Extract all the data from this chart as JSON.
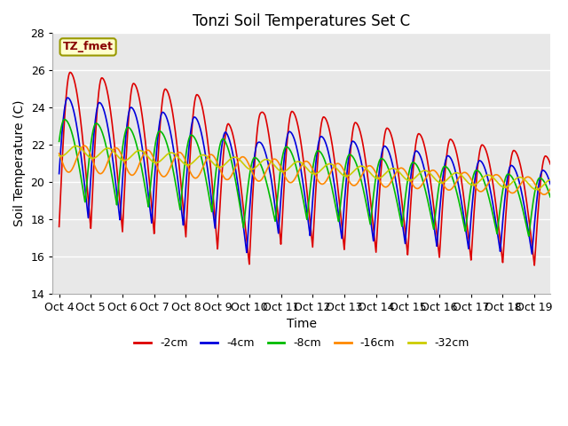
{
  "title": "Tonzi Soil Temperatures Set C",
  "xlabel": "Time",
  "ylabel": "Soil Temperature (C)",
  "ylim": [
    14,
    28
  ],
  "background_color": "#ffffff",
  "plot_bg": "#e8e8e8",
  "grid_color": "#ffffff",
  "series": [
    {
      "label": "-2cm",
      "color": "#dd0000",
      "lw": 1.2
    },
    {
      "label": "-4cm",
      "color": "#0000dd",
      "lw": 1.2
    },
    {
      "label": "-8cm",
      "color": "#00bb00",
      "lw": 1.2
    },
    {
      "label": "-16cm",
      "color": "#ff8800",
      "lw": 1.2
    },
    {
      "label": "-32cm",
      "color": "#cccc00",
      "lw": 1.2
    }
  ],
  "annotation_text": "TZ_fmet",
  "annotation_color": "#880000",
  "annotation_bg": "#ffffcc",
  "annotation_border": "#999900",
  "xtick_labels": [
    "Oct 4",
    "Oct 5",
    "Oct 6",
    "Oct 7",
    "Oct 8",
    "Oct 9",
    "Oct 10",
    "Oct 11",
    "Oct 12",
    "Oct 13",
    "Oct 14",
    "Oct 15",
    "Oct 16",
    "Oct 17",
    "Oct 18",
    "Oct 19"
  ]
}
